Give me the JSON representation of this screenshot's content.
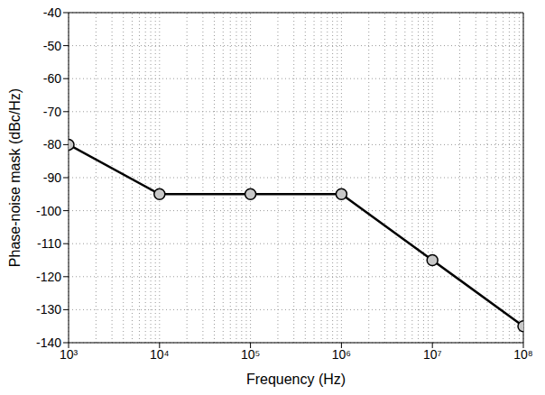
{
  "chart_data": {
    "type": "line",
    "x_label": "Frequency (Hz)",
    "y_label": "Phase-noise mask (dBc/Hz)",
    "x": [
      1000,
      10000,
      100000,
      1000000,
      10000000,
      100000000
    ],
    "values": [
      -80,
      -95,
      -95,
      -95,
      -115,
      -135
    ],
    "color": "#000000",
    "marker": "circle",
    "line_style": "solid",
    "log": "x",
    "grid": true,
    "xlim": [
      1000,
      100000000
    ],
    "xticks": [
      {
        "value": 1000,
        "label": "10³"
      },
      {
        "value": 10000,
        "label": "10⁴"
      },
      {
        "value": 100000,
        "label": "10⁵"
      },
      {
        "value": 1000000,
        "label": "10⁶"
      },
      {
        "value": 10000000,
        "label": "10⁷"
      },
      {
        "value": 100000000,
        "label": "10⁸"
      }
    ],
    "ylim": [
      -140,
      -40
    ],
    "yticks": [
      -140,
      -130,
      -120,
      -110,
      -100,
      -90,
      -80,
      -70,
      -60,
      -50,
      -40
    ]
  }
}
